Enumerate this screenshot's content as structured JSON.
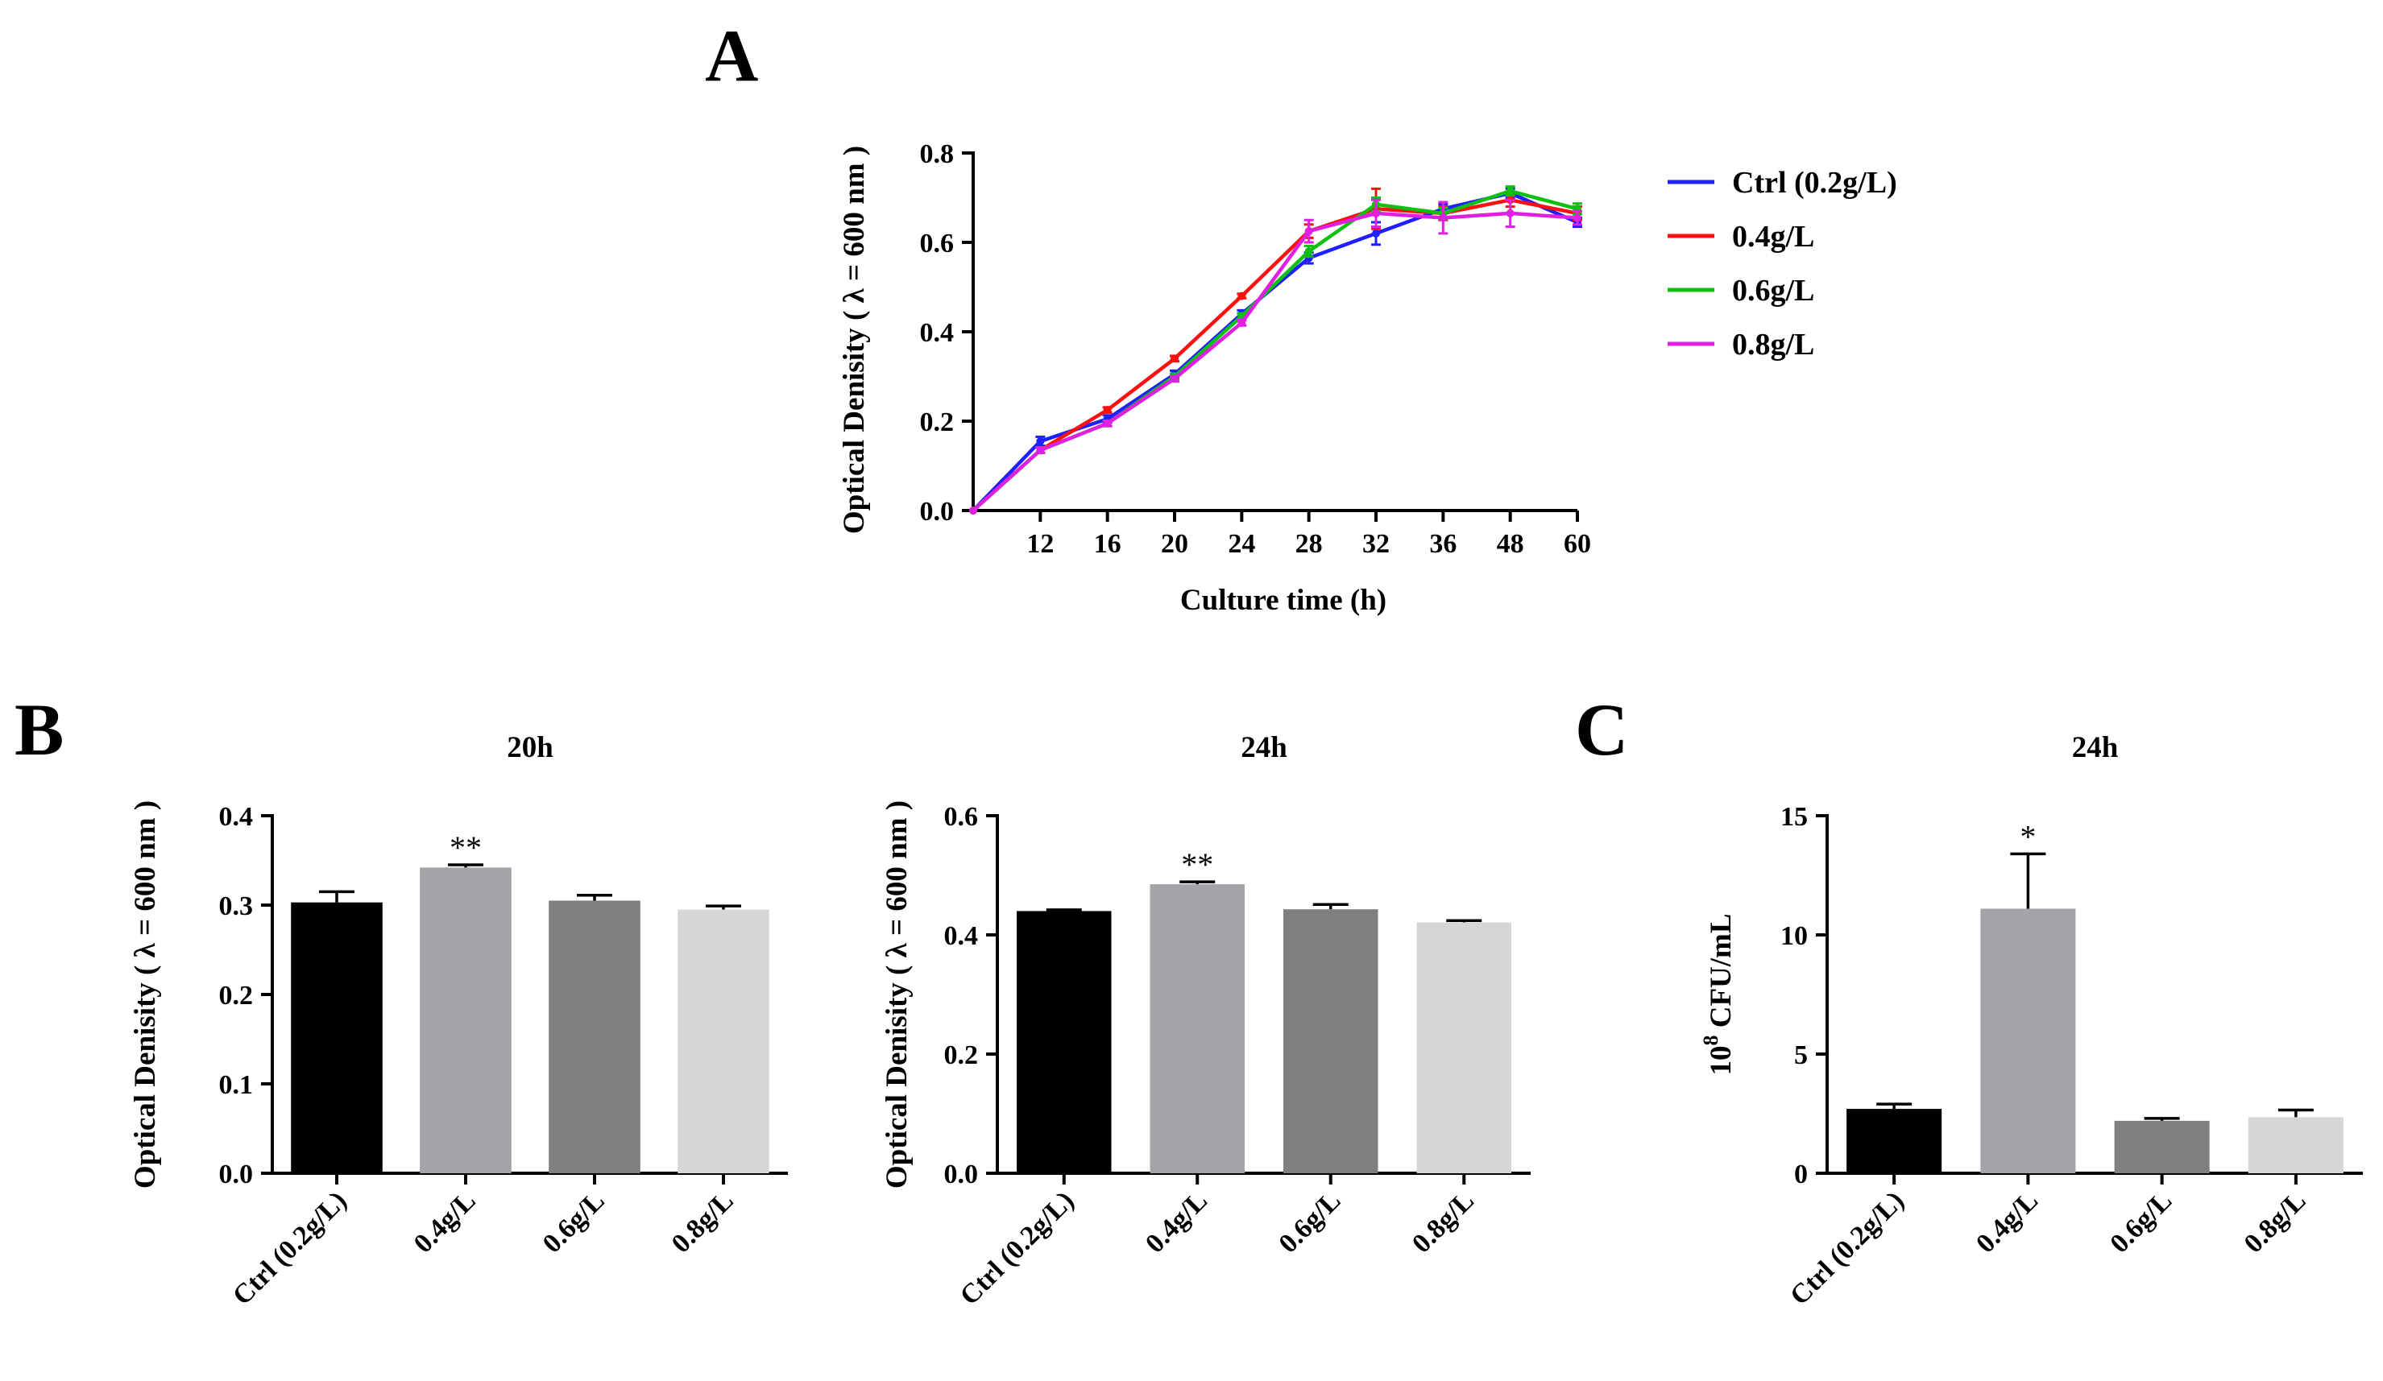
{
  "panels": {
    "A": "A",
    "B": "B",
    "C": "C"
  },
  "chart_data": [
    {
      "type": "line",
      "panel": "A",
      "title": "",
      "xlabel": "Culture time (h)",
      "ylabel": "Optical Denisity ( λ = 600 nm )",
      "x": [
        "0",
        "12",
        "16",
        "20",
        "24",
        "28",
        "32",
        "36",
        "48",
        "60"
      ],
      "x_tick_labels": [
        "12",
        "16",
        "20",
        "24",
        "28",
        "32",
        "36",
        "48",
        "60"
      ],
      "y_ticks": [
        "0.0",
        "0.2",
        "0.4",
        "0.6",
        "0.8"
      ],
      "ylim": [
        0,
        0.8
      ],
      "legend_position": "right",
      "series": [
        {
          "name": "Ctrl (0.2g/L)",
          "color": "#1f1fff",
          "values": [
            0.0,
            0.155,
            0.205,
            0.305,
            0.44,
            0.565,
            0.62,
            0.675,
            0.71,
            0.645
          ],
          "errors": [
            0,
            0.01,
            0.008,
            0.008,
            0.008,
            0.012,
            0.025,
            0.01,
            0.01,
            0.01
          ]
        },
        {
          "name": "0.4g/L",
          "color": "#ff1010",
          "values": [
            0.0,
            0.135,
            0.225,
            0.34,
            0.48,
            0.625,
            0.675,
            0.665,
            0.695,
            0.665
          ],
          "errors": [
            0,
            0.006,
            0.006,
            0.006,
            0.005,
            0.015,
            0.045,
            0.015,
            0.015,
            0.015
          ]
        },
        {
          "name": "0.6g/L",
          "color": "#10c010",
          "values": [
            0.0,
            0.135,
            0.195,
            0.3,
            0.435,
            0.58,
            0.685,
            0.665,
            0.715,
            0.675
          ],
          "errors": [
            0,
            0.006,
            0.006,
            0.006,
            0.006,
            0.012,
            0.015,
            0.012,
            0.01,
            0.012
          ]
        },
        {
          "name": "0.8g/L",
          "color": "#e020e0",
          "values": [
            0.0,
            0.135,
            0.195,
            0.295,
            0.42,
            0.625,
            0.665,
            0.655,
            0.665,
            0.655
          ],
          "errors": [
            0,
            0.006,
            0.006,
            0.006,
            0.006,
            0.025,
            0.03,
            0.035,
            0.03,
            0.015
          ]
        }
      ]
    },
    {
      "type": "bar",
      "panel": "B",
      "title": "20h",
      "xlabel": "",
      "ylabel": "Optical Denisity ( λ = 600 nm )",
      "categories": [
        "Ctrl (0.2g/L)",
        "0.4g/L",
        "0.6g/L",
        "0.8g/L"
      ],
      "values": [
        0.303,
        0.342,
        0.305,
        0.295
      ],
      "errors": [
        0.012,
        0.003,
        0.006,
        0.004
      ],
      "significance": [
        "",
        "**",
        "",
        ""
      ],
      "colors": [
        "#000000",
        "#a3a3a8",
        "#7f7f7f",
        "#d6d6d6"
      ],
      "y_ticks": [
        "0.0",
        "0.1",
        "0.2",
        "0.3",
        "0.4"
      ],
      "ylim": [
        0,
        0.4
      ]
    },
    {
      "type": "bar",
      "panel": "B",
      "title": "24h",
      "xlabel": "",
      "ylabel": "Optical Denisity ( λ = 600 nm )",
      "categories": [
        "Ctrl (0.2g/L)",
        "0.4g/L",
        "0.6g/L",
        "0.8g/L"
      ],
      "values": [
        0.44,
        0.485,
        0.443,
        0.421
      ],
      "errors": [
        0.002,
        0.004,
        0.008,
        0.003
      ],
      "significance": [
        "",
        "**",
        "",
        ""
      ],
      "colors": [
        "#000000",
        "#a3a3a8",
        "#7f7f7f",
        "#d6d6d6"
      ],
      "y_ticks": [
        "0.0",
        "0.2",
        "0.4",
        "0.6"
      ],
      "ylim": [
        0,
        0.6
      ]
    },
    {
      "type": "bar",
      "panel": "C",
      "title": "24h",
      "xlabel": "",
      "ylabel": "CFU/mL",
      "ylabel_prefix": "10",
      "ylabel_exponent": "8",
      "categories": [
        "Ctrl (0.2g/L)",
        "0.4g/L",
        "0.6g/L",
        "0.8g/L"
      ],
      "values": [
        2.7,
        11.1,
        2.2,
        2.35
      ],
      "errors": [
        0.2,
        2.3,
        0.1,
        0.3
      ],
      "significance": [
        "",
        "*",
        "",
        ""
      ],
      "colors": [
        "#000000",
        "#a3a3a8",
        "#7f7f7f",
        "#d6d6d6"
      ],
      "y_ticks": [
        "0",
        "5",
        "10",
        "15"
      ],
      "ylim": [
        0,
        15
      ]
    }
  ]
}
